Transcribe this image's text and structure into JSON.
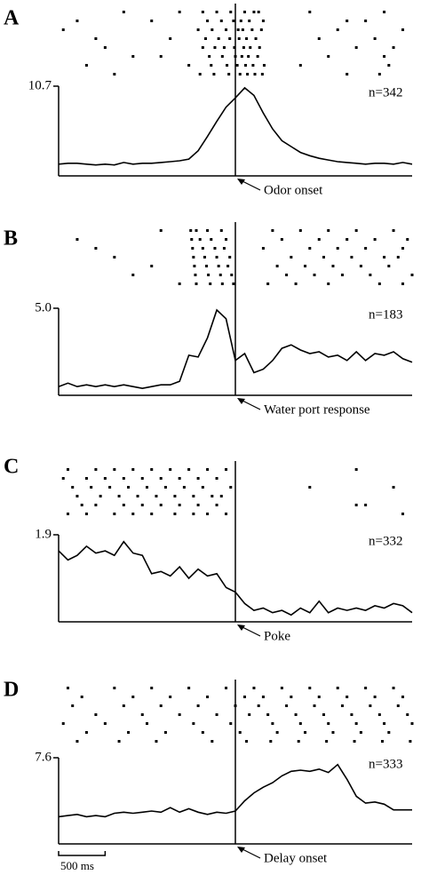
{
  "chart_data": [
    {
      "type": "line",
      "panel": "A",
      "annotation": "Odor onset",
      "n_label": "n=342",
      "x": [
        -1900,
        -1800,
        -1700,
        -1600,
        -1500,
        -1400,
        -1300,
        -1200,
        -1100,
        -1000,
        -900,
        -800,
        -700,
        -600,
        -500,
        -400,
        -300,
        -200,
        -100,
        0,
        100,
        200,
        300,
        400,
        500,
        600,
        700,
        800,
        900,
        1000,
        1100,
        1200,
        1300,
        1400,
        1500,
        1600,
        1700,
        1800,
        1900
      ],
      "values": [
        1.4,
        1.5,
        1.5,
        1.4,
        1.3,
        1.4,
        1.3,
        1.6,
        1.4,
        1.5,
        1.5,
        1.6,
        1.7,
        1.8,
        2.0,
        3.0,
        4.7,
        6.5,
        8.2,
        9.3,
        10.5,
        9.6,
        7.5,
        5.6,
        4.2,
        3.5,
        2.8,
        2.4,
        2.1,
        1.9,
        1.7,
        1.6,
        1.5,
        1.4,
        1.5,
        1.5,
        1.4,
        1.6,
        1.4
      ],
      "xlim": [
        -1900,
        1900
      ],
      "ylim": [
        0,
        10.7
      ],
      "yticks": [
        10.7
      ],
      "raster": [
        [
          -1200,
          -600,
          -350,
          -200,
          -50,
          100,
          200,
          250,
          800,
          1600
        ],
        [
          -1700,
          -900,
          -300,
          -150,
          -20,
          60,
          150,
          300,
          1200,
          1400
        ],
        [
          -1850,
          -400,
          -250,
          -100,
          30,
          80,
          180,
          280,
          1100,
          1800
        ],
        [
          -1500,
          -700,
          -320,
          -180,
          -60,
          40,
          120,
          220,
          900,
          1500
        ],
        [
          -1400,
          -350,
          -220,
          -120,
          -10,
          90,
          160,
          260,
          1300,
          1700
        ],
        [
          -1100,
          -800,
          -280,
          -140,
          0,
          70,
          140,
          240,
          1000,
          1600
        ],
        [
          -1600,
          -500,
          -260,
          -90,
          20,
          110,
          190,
          310,
          700,
          1650
        ],
        [
          -1300,
          -380,
          -230,
          -70,
          50,
          130,
          210,
          290,
          1200,
          1550
        ]
      ]
    },
    {
      "type": "line",
      "panel": "B",
      "annotation": "Water port response",
      "n_label": "n=183",
      "x": [
        -1900,
        -1800,
        -1700,
        -1600,
        -1500,
        -1400,
        -1300,
        -1200,
        -1100,
        -1000,
        -900,
        -800,
        -700,
        -600,
        -500,
        -400,
        -300,
        -200,
        -100,
        0,
        100,
        200,
        300,
        400,
        500,
        600,
        700,
        800,
        900,
        1000,
        1100,
        1200,
        1300,
        1400,
        1500,
        1600,
        1700,
        1800,
        1900
      ],
      "values": [
        0.5,
        0.7,
        0.5,
        0.6,
        0.5,
        0.6,
        0.5,
        0.6,
        0.5,
        0.4,
        0.5,
        0.6,
        0.6,
        0.8,
        2.3,
        2.2,
        3.3,
        4.9,
        4.4,
        2.0,
        2.4,
        1.3,
        1.5,
        2.0,
        2.7,
        2.9,
        2.6,
        2.4,
        2.5,
        2.2,
        2.3,
        2.0,
        2.5,
        2.0,
        2.4,
        2.3,
        2.5,
        2.1,
        1.9
      ],
      "xlim": [
        -1900,
        1900
      ],
      "ylim": [
        0,
        5
      ],
      "yticks": [
        {
          "value": 5,
          "label": "5.0"
        }
      ],
      "raster": [
        [
          -800,
          -480,
          -420,
          -300,
          -150,
          400,
          700,
          1000,
          1300,
          1700
        ],
        [
          -1700,
          -470,
          -380,
          -260,
          -100,
          500,
          900,
          1200,
          1500,
          1850
        ],
        [
          -1500,
          -460,
          -350,
          -220,
          -120,
          300,
          800,
          1100,
          1400,
          1800
        ],
        [
          -1300,
          -450,
          -330,
          -200,
          -60,
          600,
          950,
          1250,
          1600,
          1750
        ],
        [
          -900,
          -440,
          -310,
          -180,
          -80,
          450,
          750,
          1050,
          1350,
          1650
        ],
        [
          -1100,
          -430,
          -290,
          -160,
          -40,
          550,
          850,
          1150,
          1450,
          1900
        ],
        [
          -600,
          -420,
          -270,
          -140,
          -20,
          350,
          650,
          1000,
          1550,
          1800
        ]
      ]
    },
    {
      "type": "line",
      "panel": "C",
      "annotation": "Poke",
      "n_label": "n=332",
      "x": [
        -1900,
        -1800,
        -1700,
        -1600,
        -1500,
        -1400,
        -1300,
        -1200,
        -1100,
        -1000,
        -900,
        -800,
        -700,
        -600,
        -500,
        -400,
        -300,
        -200,
        -100,
        0,
        100,
        200,
        300,
        400,
        500,
        600,
        700,
        800,
        900,
        1000,
        1100,
        1200,
        1300,
        1400,
        1500,
        1600,
        1700,
        1800,
        1900
      ],
      "values": [
        1.55,
        1.35,
        1.45,
        1.65,
        1.5,
        1.55,
        1.45,
        1.75,
        1.5,
        1.45,
        1.05,
        1.1,
        1.0,
        1.2,
        0.95,
        1.15,
        1.0,
        1.05,
        0.75,
        0.65,
        0.4,
        0.25,
        0.3,
        0.2,
        0.25,
        0.15,
        0.3,
        0.2,
        0.45,
        0.2,
        0.3,
        0.25,
        0.3,
        0.25,
        0.35,
        0.3,
        0.4,
        0.35,
        0.2
      ],
      "xlim": [
        -1900,
        1900
      ],
      "ylim": [
        0,
        1.9
      ],
      "yticks": [
        1.9
      ],
      "raster": [
        [
          -1800,
          -1500,
          -1300,
          -1100,
          -900,
          -700,
          -500,
          -300,
          -100,
          1300
        ],
        [
          -1850,
          -1600,
          -1400,
          -1200,
          -1000,
          -800,
          -600,
          -400,
          -200
        ],
        [
          -1750,
          -1550,
          -1350,
          -1150,
          -950,
          -750,
          -550,
          -350,
          -50,
          800,
          1700
        ],
        [
          -1700,
          -1450,
          -1250,
          -1050,
          -850,
          -650,
          -450,
          -250,
          -150
        ],
        [
          -1650,
          -1500,
          -1200,
          -1000,
          -800,
          -600,
          -400,
          -200,
          1300,
          1400
        ],
        [
          -1800,
          -1600,
          -1300,
          -1100,
          -900,
          -650,
          -450,
          -300,
          -100,
          1800
        ]
      ]
    },
    {
      "type": "line",
      "panel": "D",
      "annotation": "Delay onset",
      "n_label": "n=333",
      "x": [
        -1900,
        -1800,
        -1700,
        -1600,
        -1500,
        -1400,
        -1300,
        -1200,
        -1100,
        -1000,
        -900,
        -800,
        -700,
        -600,
        -500,
        -400,
        -300,
        -200,
        -100,
        0,
        100,
        200,
        300,
        400,
        500,
        600,
        700,
        800,
        900,
        1000,
        1100,
        1200,
        1300,
        1400,
        1500,
        1600,
        1700,
        1800,
        1900
      ],
      "values": [
        2.4,
        2.5,
        2.6,
        2.4,
        2.5,
        2.4,
        2.7,
        2.8,
        2.7,
        2.8,
        2.9,
        2.8,
        3.2,
        2.8,
        3.1,
        2.8,
        2.6,
        2.8,
        2.7,
        2.9,
        3.8,
        4.5,
        5.0,
        5.4,
        6.0,
        6.4,
        6.5,
        6.4,
        6.6,
        6.3,
        7.0,
        5.7,
        4.2,
        3.6,
        3.7,
        3.5,
        3.0,
        3.0,
        3.0
      ],
      "xlim": [
        -1900,
        1900
      ],
      "ylim": [
        0,
        7.6
      ],
      "yticks": [
        7.6
      ],
      "scale_bar": {
        "length": 500,
        "label": "500 ms"
      },
      "raster": [
        [
          -1800,
          -1300,
          -900,
          -500,
          -100,
          200,
          500,
          800,
          1100,
          1400,
          1700
        ],
        [
          -1650,
          -1100,
          -700,
          -300,
          100,
          300,
          600,
          900,
          1200,
          1500,
          1800
        ],
        [
          -1750,
          -1200,
          -800,
          -400,
          0,
          250,
          550,
          850,
          1150,
          1450,
          1750
        ],
        [
          -1500,
          -1000,
          -600,
          -200,
          150,
          350,
          650,
          950,
          1250,
          1550,
          1850
        ],
        [
          -1850,
          -1400,
          -950,
          -450,
          -50,
          400,
          700,
          1000,
          1300,
          1600,
          1900
        ],
        [
          -1600,
          -1150,
          -750,
          -350,
          50,
          450,
          750,
          1050,
          1350,
          1650
        ],
        [
          -1700,
          -1250,
          -850,
          -250,
          120,
          380,
          680,
          980,
          1280,
          1580,
          1880
        ]
      ]
    }
  ]
}
